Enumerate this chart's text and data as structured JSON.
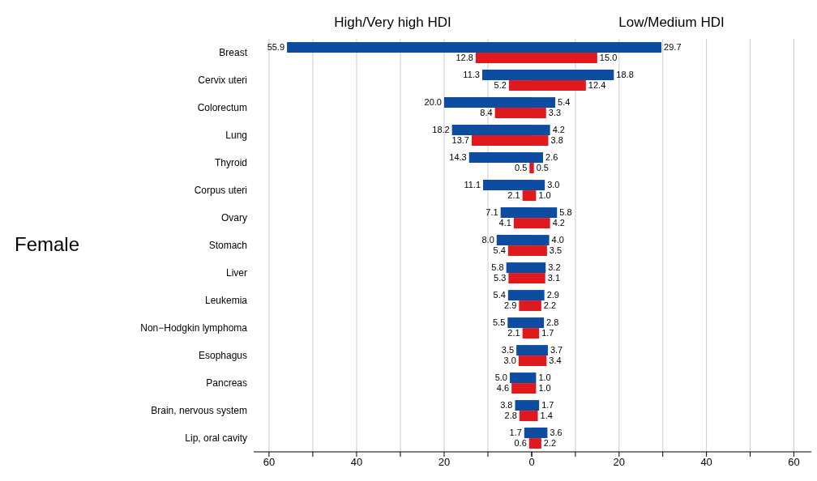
{
  "chart_data": [
    {
      "type": "bar",
      "orientation": "horizontal",
      "title": "High/Very high HDI",
      "ylabel": "Female",
      "categories": [
        "Breast",
        "Cervix uteri",
        "Colorectum",
        "Lung",
        "Thyroid",
        "Corpus uteri",
        "Ovary",
        "Stomach",
        "Liver",
        "Leukemia",
        "Non−Hodgkin lymphoma",
        "Esophagus",
        "Pancreas",
        "Brain, nervous system",
        "Lip, oral cavity"
      ],
      "series": [
        {
          "color": "#0c4da2",
          "values": [
            55.9,
            11.3,
            20.0,
            18.2,
            14.3,
            11.1,
            7.1,
            8.0,
            5.8,
            5.4,
            5.5,
            3.5,
            5.0,
            3.8,
            1.7
          ],
          "value_labels": [
            "55.9",
            "11.3",
            "20.0",
            "18.2",
            "14.3",
            "11.1",
            "7.1",
            "8.0",
            "5.8",
            "5.4",
            "5.5",
            "3.5",
            "5.0",
            "3.8",
            "1.7"
          ]
        },
        {
          "color": "#e0191e",
          "values": [
            12.8,
            5.2,
            8.4,
            13.7,
            0.5,
            2.1,
            4.1,
            5.4,
            5.3,
            2.9,
            2.1,
            3.0,
            4.6,
            2.8,
            0.6
          ],
          "value_labels": [
            "12.8",
            "5.2",
            "8.4",
            "13.7",
            "0.5",
            "2.1",
            "4.1",
            "5.4",
            "5.3",
            "2.9",
            "2.1",
            "3.0",
            "4.6",
            "2.8",
            "0.6"
          ]
        }
      ],
      "xlim": [
        63.5,
        0
      ],
      "xticks": [
        60,
        {
          "value": 50,
          "label": null
        },
        40,
        {
          "value": 30,
          "label": null
        },
        20,
        {
          "value": 10,
          "label": null
        },
        0
      ],
      "grid": "x"
    },
    {
      "type": "bar",
      "orientation": "horizontal",
      "title": "Low/Medium HDI",
      "tick_labels": "x",
      "categories": [
        null,
        null,
        null,
        null,
        null,
        null,
        null,
        null,
        null,
        null,
        null,
        null,
        null,
        null,
        null
      ],
      "series": [
        {
          "color": "#0c4da2",
          "values": [
            29.7,
            18.8,
            5.4,
            4.2,
            2.6,
            3.0,
            5.8,
            4.0,
            3.2,
            2.9,
            2.8,
            3.7,
            1.0,
            1.7,
            3.6
          ],
          "value_labels": [
            "29.7",
            "18.8",
            "5.4",
            "4.2",
            "2.6",
            "3.0",
            "5.8",
            "4.0",
            "3.2",
            "2.9",
            "2.8",
            "3.7",
            "1.0",
            "1.7",
            "3.6"
          ]
        },
        {
          "color": "#e0191e",
          "values": [
            15.0,
            12.4,
            3.3,
            3.8,
            0.5,
            1.0,
            4.2,
            3.5,
            3.1,
            2.2,
            1.7,
            3.4,
            1.0,
            1.4,
            2.2
          ],
          "value_labels": [
            "15.0",
            "12.4",
            "3.3",
            "3.8",
            "0.5",
            "1.0",
            "4.2",
            "3.5",
            "3.1",
            "2.2",
            "1.7",
            "3.4",
            "1.0",
            "1.4",
            "2.2"
          ]
        }
      ],
      "xlim": [
        0,
        64
      ],
      "xticks": [
        {
          "value": 0,
          "label": null
        },
        {
          "value": 10,
          "label": null
        },
        20,
        {
          "value": 30,
          "label": null
        },
        40,
        {
          "value": 50,
          "label": null
        },
        60
      ],
      "grid": "x"
    }
  ]
}
